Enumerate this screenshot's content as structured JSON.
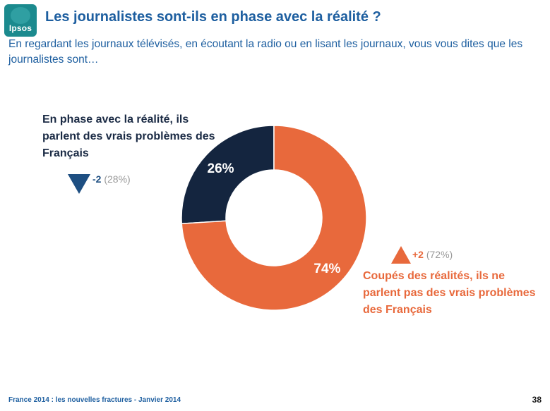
{
  "brand": {
    "logo_text": "Ipsos"
  },
  "header": {
    "title": "Les journalistes sont-ils en phase avec la réalité ?",
    "subtitle": "En regardant les journaux télévisés, en écoutant la radio ou en lisant les journaux, vous vous dites que les journalistes sont…"
  },
  "chart_data": {
    "type": "pie",
    "donut": true,
    "slices": [
      {
        "label": "En phase avec la réalité, ils parlent des vrais problèmes des Français",
        "value": 26,
        "value_label": "26%",
        "color": "#14253f",
        "change": "-2",
        "previous": "(28%)",
        "trend": "down"
      },
      {
        "label": "Coupés des réalités, ils ne parlent pas des vrais problèmes des Français",
        "value": 74,
        "value_label": "74%",
        "color": "#e8693c",
        "change": "+2",
        "previous": "(72%)",
        "trend": "up"
      }
    ],
    "colors": {
      "up": "#e8693c",
      "down": "#1e4f82",
      "previous": "#9a9a9a"
    }
  },
  "footer": {
    "source": "France 2014 : les nouvelles fractures - Janvier 2014",
    "page_number": "38"
  }
}
